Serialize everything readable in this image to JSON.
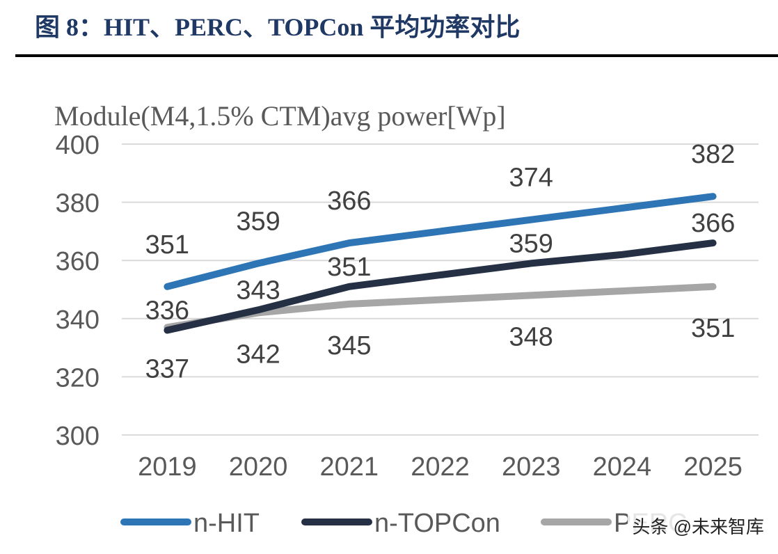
{
  "header": {
    "figure_title": "图 8：HIT、PERC、TOPCon 平均功率对比"
  },
  "watermark": "头条 @未来智库",
  "chart_data": {
    "type": "line",
    "title": "",
    "ylabel": "Module(M4,1.5% CTM)avg power[Wp]",
    "xlabel": "",
    "categories": [
      "2019",
      "2020",
      "2021",
      "2022",
      "2023",
      "2024",
      "2025"
    ],
    "ylim": [
      300,
      400
    ],
    "yticks": [
      300,
      320,
      340,
      360,
      380,
      400
    ],
    "grid": true,
    "legend_position": "bottom",
    "series": [
      {
        "name": "n-HIT",
        "color": "#2e75b6",
        "values": [
          351,
          359,
          366,
          370,
          374,
          378,
          382
        ],
        "labels": [
          "351",
          "359",
          "366",
          null,
          "374",
          null,
          "382"
        ]
      },
      {
        "name": "n-TOPCon",
        "color": "#253045",
        "values": [
          336,
          343,
          351,
          355,
          359,
          362,
          366
        ],
        "labels": [
          "336",
          "343",
          "351",
          null,
          "359",
          null,
          "366"
        ]
      },
      {
        "name": "PERC",
        "color": "#a6a6a6",
        "values": [
          337,
          342,
          345,
          346.5,
          348,
          349.5,
          351
        ],
        "labels": [
          "337",
          "342",
          "345",
          null,
          "348",
          null,
          "351"
        ]
      }
    ]
  }
}
